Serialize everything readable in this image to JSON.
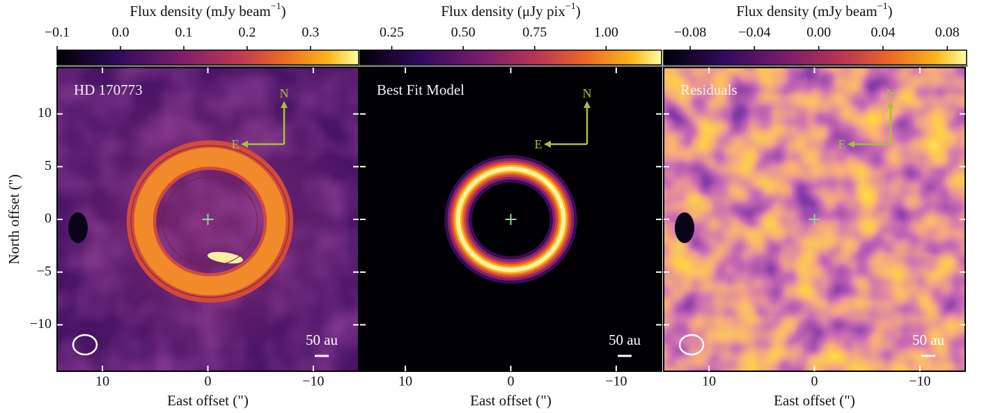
{
  "chart_data": [
    {
      "type": "image",
      "panel_label": "HD 170773",
      "compass_n": "N",
      "compass_e": "E",
      "scale_bar": "50 au",
      "colorbar_label": "Flux density (mJy beam",
      "colorbar_label_sup": "−1",
      "colorbar_label_end": ")",
      "clim": [
        -0.1,
        0.376
      ],
      "cticks": [
        {
          "value": -0.1,
          "label": "−0.1"
        },
        {
          "value": 0,
          "label": "0.0"
        },
        0.1,
        0.2,
        0.3
      ],
      "xlabel": "East offset (\")",
      "ylabel": "North offset (\")",
      "xlim": [
        14.3,
        -14.3
      ],
      "xticks": [
        10,
        0,
        {
          "value": -10,
          "label": "−10"
        }
      ],
      "ylim": [
        -14.4,
        14.4
      ],
      "yticks": [
        {
          "value": -10,
          "label": "−10"
        },
        {
          "value": -5,
          "label": "−5"
        },
        0,
        5,
        10
      ]
    },
    {
      "type": "image",
      "panel_label": "Best Fit Model",
      "compass_n": "N",
      "compass_e": "E",
      "scale_bar": "50 au",
      "colorbar_label": "Flux density (μJy pix",
      "colorbar_label_sup": "−1",
      "colorbar_label_end": ")",
      "clim": [
        0.139,
        1.194
      ],
      "cticks": [
        0.25,
        {
          "value": 0.5,
          "label": "0.50"
        },
        0.75,
        {
          "value": 1,
          "label": "1.00"
        }
      ],
      "xlabel": "East offset (\")",
      "xlim": [
        14.3,
        -14.3
      ],
      "xticks": [
        10,
        0,
        {
          "value": -10,
          "label": "−10"
        }
      ],
      "ylim": [
        -14.4,
        14.4
      ]
    },
    {
      "type": "image",
      "panel_label": "Residuals",
      "compass_n": "N",
      "compass_e": "E",
      "scale_bar": "50 au",
      "colorbar_label": "Flux density (mJy beam",
      "colorbar_label_sup": "−1",
      "colorbar_label_end": ")",
      "clim": [
        -0.0965,
        0.092
      ],
      "cticks": [
        {
          "value": -0.08,
          "label": "−0.08"
        },
        {
          "value": -0.04,
          "label": "−0.04"
        },
        {
          "value": 0,
          "label": "0.00"
        },
        0.04,
        0.08
      ],
      "xlabel": "East offset (\")",
      "xlim": [
        14.3,
        -14.3
      ],
      "xticks": [
        10,
        0,
        {
          "value": -10,
          "label": "−10"
        }
      ],
      "ylim": [
        -14.4,
        14.4
      ]
    }
  ]
}
